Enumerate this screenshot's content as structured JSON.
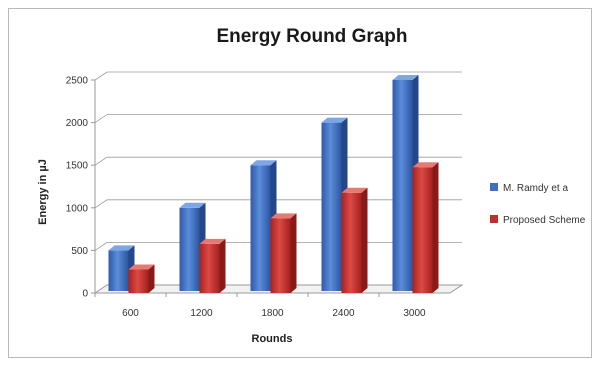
{
  "chart_data": {
    "type": "bar",
    "title": "Energy Round Graph",
    "xlabel": "Rounds",
    "ylabel": "Energy in µJ",
    "categories": [
      "600",
      "1200",
      "1800",
      "2400",
      "3000"
    ],
    "series": [
      {
        "name": "M. Ramdy et a",
        "color": "#3f6fc0",
        "values": [
          500,
          1000,
          1500,
          2000,
          2500
        ]
      },
      {
        "name": "Proposed Scheme",
        "color": "#c0302c",
        "values": [
          300,
          600,
          900,
          1200,
          1500
        ]
      }
    ],
    "ylim": [
      0,
      2500
    ],
    "yticks": [
      "0",
      "500",
      "1000",
      "1500",
      "2000",
      "2500"
    ],
    "grid": true,
    "legend": "right"
  }
}
